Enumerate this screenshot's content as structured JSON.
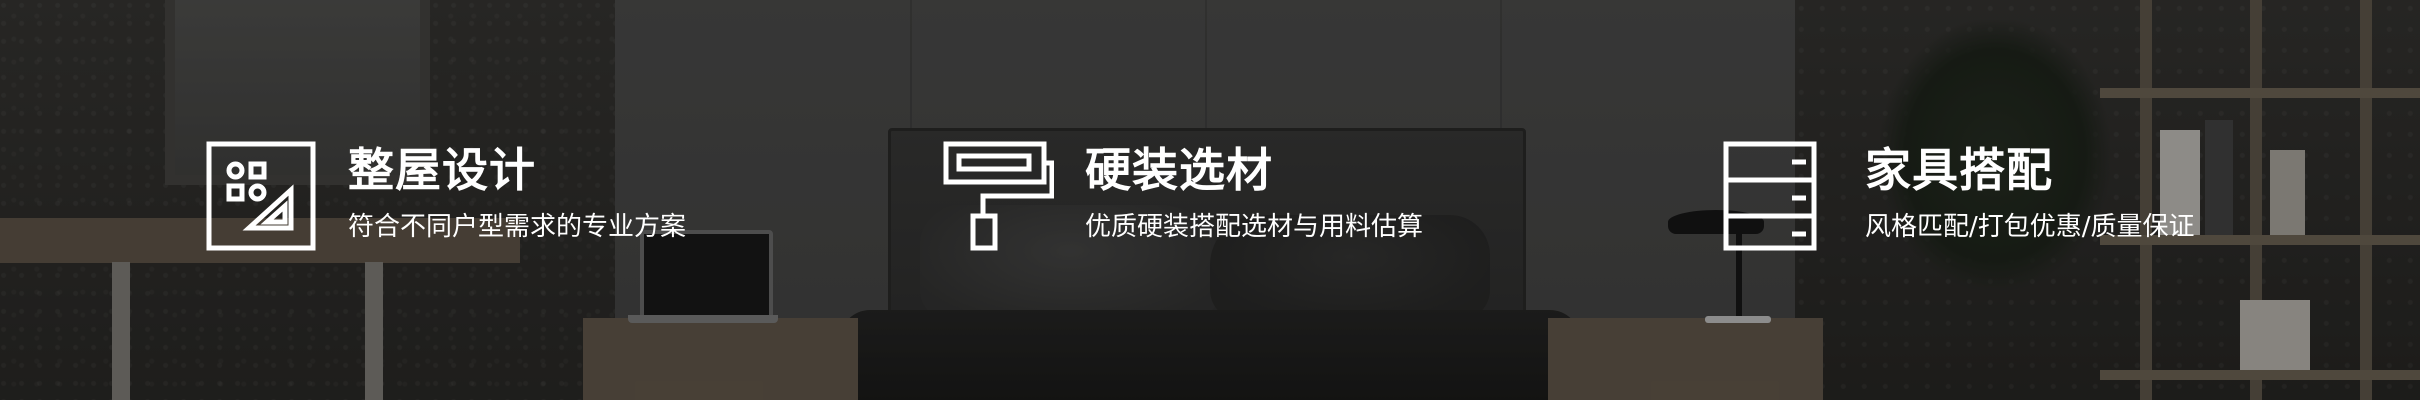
{
  "banner": {
    "features": [
      {
        "icon": "ruler-layout-icon",
        "title": "整屋设计",
        "description": "符合不同户型需求的专业方案"
      },
      {
        "icon": "paint-roller-icon",
        "title": "硬装选材",
        "description": "优质硬装搭配选材与用料估算"
      },
      {
        "icon": "cabinet-icon",
        "title": "家具搭配",
        "description": "风格匹配/打包优惠/质量保证"
      }
    ],
    "colors": {
      "text": "#ffffff",
      "icon_stroke": "#ffffff"
    }
  }
}
